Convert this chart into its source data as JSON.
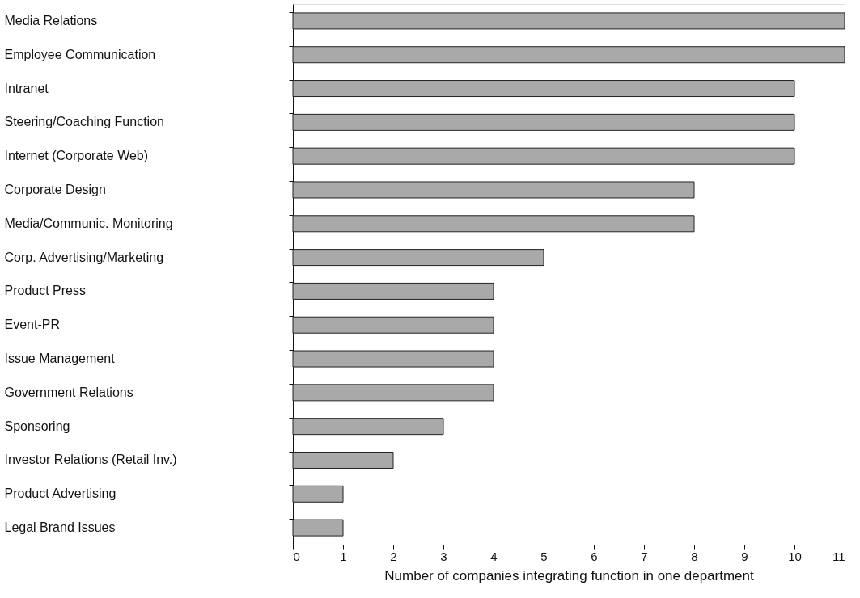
{
  "chart_data": {
    "type": "bar",
    "orientation": "horizontal",
    "categories": [
      "Media Relations",
      "Employee Communication",
      "Intranet",
      "Steering/Coaching Function",
      "Internet (Corporate Web)",
      "Corporate Design",
      "Media/Communic. Monitoring",
      "Corp. Advertising/Marketing",
      "Product Press",
      "Event-PR",
      "Issue Management",
      "Government Relations",
      "Sponsoring",
      "Investor Relations (Retail Inv.)",
      "Product Advertising",
      "Legal Brand Issues"
    ],
    "values": [
      11,
      11,
      10,
      10,
      10,
      8,
      8,
      5,
      4,
      4,
      4,
      4,
      3,
      2,
      1,
      1
    ],
    "color": "#a9a9a9",
    "xlabel": "Number of companies integrating function in one department",
    "xlim": [
      0,
      11
    ],
    "xticks": [
      0,
      1,
      2,
      3,
      4,
      5,
      6,
      7,
      8,
      9,
      10,
      11
    ],
    "grid": false
  }
}
